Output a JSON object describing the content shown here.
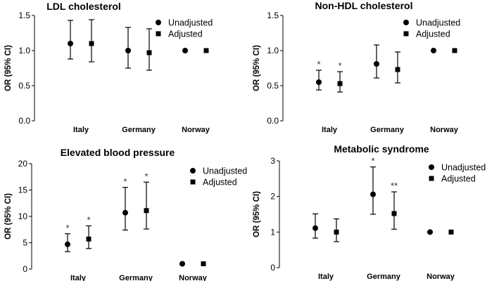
{
  "chart_data": [
    {
      "id": "ldl",
      "type": "scatter",
      "title": "LDL cholesterol",
      "xlabel": "",
      "ylabel": "OR (95% CI)",
      "ylim": [
        0,
        1.5
      ],
      "yticks": [
        "0.0",
        "0.5",
        "1.0",
        "1.5"
      ],
      "categories": [
        "Italy",
        "Germany",
        "Norway"
      ],
      "legend": [
        "Unadjusted",
        "Adjusted"
      ],
      "series": [
        {
          "name": "Unadjusted",
          "marker": "circle",
          "values": [
            1.1,
            1.0,
            1.0
          ],
          "lower": [
            0.88,
            0.75,
            null
          ],
          "upper": [
            1.43,
            1.33,
            null
          ],
          "annotations": [
            "",
            "",
            ""
          ]
        },
        {
          "name": "Adjusted",
          "marker": "square",
          "values": [
            1.1,
            0.97,
            1.0
          ],
          "lower": [
            0.84,
            0.72,
            null
          ],
          "upper": [
            1.44,
            1.31,
            null
          ],
          "annotations": [
            "",
            "",
            ""
          ]
        }
      ]
    },
    {
      "id": "nonhdl",
      "type": "scatter",
      "title": "Non-HDL cholesterol",
      "xlabel": "",
      "ylabel": "OR (95% CI)",
      "ylim": [
        0,
        1.5
      ],
      "yticks": [
        "0.0",
        "0.5",
        "1.0",
        "1.5"
      ],
      "categories": [
        "Italy",
        "Germany",
        "Norway"
      ],
      "legend": [
        "Unadjusted",
        "Adjusted"
      ],
      "series": [
        {
          "name": "Unadjusted",
          "marker": "circle",
          "values": [
            0.55,
            0.81,
            1.0
          ],
          "lower": [
            0.44,
            0.61,
            null
          ],
          "upper": [
            0.72,
            1.08,
            null
          ],
          "annotations": [
            "*",
            "",
            ""
          ]
        },
        {
          "name": "Adjusted",
          "marker": "square",
          "values": [
            0.53,
            0.73,
            1.0
          ],
          "lower": [
            0.41,
            0.54,
            null
          ],
          "upper": [
            0.7,
            0.98,
            null
          ],
          "annotations": [
            "*",
            "",
            ""
          ]
        }
      ]
    },
    {
      "id": "bp",
      "type": "scatter",
      "title": "Elevated blood pressure",
      "xlabel": "",
      "ylabel": "OR (95% CI)",
      "ylim": [
        0,
        20
      ],
      "yticks": [
        "0",
        "5",
        "10",
        "15",
        "20"
      ],
      "categories": [
        "Italy",
        "Germany",
        "Norway"
      ],
      "legend": [
        "Unadjusted",
        "Adjusted"
      ],
      "series": [
        {
          "name": "Unadjusted",
          "marker": "circle",
          "values": [
            4.7,
            10.7,
            1.0
          ],
          "lower": [
            3.3,
            7.4,
            null
          ],
          "upper": [
            6.7,
            15.5,
            null
          ],
          "annotations": [
            "*",
            "*",
            ""
          ]
        },
        {
          "name": "Adjusted",
          "marker": "square",
          "values": [
            5.7,
            11.1,
            1.0
          ],
          "lower": [
            3.9,
            7.6,
            null
          ],
          "upper": [
            8.2,
            16.5,
            null
          ],
          "annotations": [
            "*",
            "*",
            ""
          ]
        }
      ]
    },
    {
      "id": "mets",
      "type": "scatter",
      "title": "Metabolic syndrome",
      "xlabel": "",
      "ylabel": "OR (95% CI)",
      "ylim": [
        0,
        3
      ],
      "yticks": [
        "0",
        "1",
        "2",
        "3"
      ],
      "categories": [
        "Italy",
        "Germany",
        "Norway"
      ],
      "legend": [
        "Unadjusted",
        "Adjusted"
      ],
      "series": [
        {
          "name": "Unadjusted",
          "marker": "circle",
          "values": [
            1.11,
            2.06,
            1.0
          ],
          "lower": [
            0.83,
            1.5,
            null
          ],
          "upper": [
            1.51,
            2.83,
            null
          ],
          "annotations": [
            "",
            "*",
            ""
          ]
        },
        {
          "name": "Adjusted",
          "marker": "square",
          "values": [
            1.0,
            1.52,
            1.0
          ],
          "lower": [
            0.73,
            1.08,
            null
          ],
          "upper": [
            1.37,
            2.13,
            null
          ],
          "annotations": [
            "",
            "**",
            ""
          ]
        }
      ]
    }
  ]
}
